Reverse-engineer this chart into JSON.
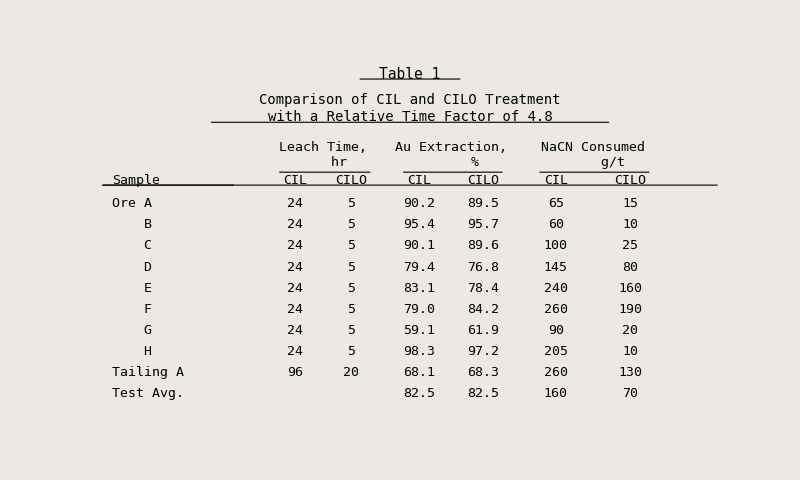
{
  "title": "Table 1",
  "subtitle1": "Comparison of CIL and CILO Treatment",
  "subtitle2": "with a Relative Time Factor of 4.8",
  "bg_color": "#ece9e4",
  "font_family": "monospace",
  "font_size": 10,
  "col_x": {
    "sample": 0.02,
    "leach_cil": 0.285,
    "leach_cilo": 0.375,
    "au_cil": 0.485,
    "au_cilo": 0.588,
    "nacn_cil": 0.705,
    "nacn_cilo": 0.825
  },
  "rows": [
    {
      "sample": "Ore A",
      "leach_cil": "24",
      "leach_cilo": "5",
      "au_cil": "90.2",
      "au_cilo": "89.5",
      "nacn_cil": "65",
      "nacn_cilo": "15"
    },
    {
      "sample": "    B",
      "leach_cil": "24",
      "leach_cilo": "5",
      "au_cil": "95.4",
      "au_cilo": "95.7",
      "nacn_cil": "60",
      "nacn_cilo": "10"
    },
    {
      "sample": "    C",
      "leach_cil": "24",
      "leach_cilo": "5",
      "au_cil": "90.1",
      "au_cilo": "89.6",
      "nacn_cil": "100",
      "nacn_cilo": "25"
    },
    {
      "sample": "    D",
      "leach_cil": "24",
      "leach_cilo": "5",
      "au_cil": "79.4",
      "au_cilo": "76.8",
      "nacn_cil": "145",
      "nacn_cilo": "80"
    },
    {
      "sample": "    E",
      "leach_cil": "24",
      "leach_cilo": "5",
      "au_cil": "83.1",
      "au_cilo": "78.4",
      "nacn_cil": "240",
      "nacn_cilo": "160"
    },
    {
      "sample": "    F",
      "leach_cil": "24",
      "leach_cilo": "5",
      "au_cil": "79.0",
      "au_cilo": "84.2",
      "nacn_cil": "260",
      "nacn_cilo": "190"
    },
    {
      "sample": "    G",
      "leach_cil": "24",
      "leach_cilo": "5",
      "au_cil": "59.1",
      "au_cilo": "61.9",
      "nacn_cil": "90",
      "nacn_cilo": "20"
    },
    {
      "sample": "    H",
      "leach_cil": "24",
      "leach_cilo": "5",
      "au_cil": "98.3",
      "au_cilo": "97.2",
      "nacn_cil": "205",
      "nacn_cilo": "10"
    },
    {
      "sample": "Tailing A",
      "leach_cil": "96",
      "leach_cilo": "20",
      "au_cil": "68.1",
      "au_cilo": "68.3",
      "nacn_cil": "260",
      "nacn_cilo": "130"
    },
    {
      "sample": "Test Avg.",
      "leach_cil": "",
      "leach_cilo": "",
      "au_cil": "82.5",
      "au_cilo": "82.5",
      "nacn_cil": "160",
      "nacn_cilo": "70"
    }
  ]
}
